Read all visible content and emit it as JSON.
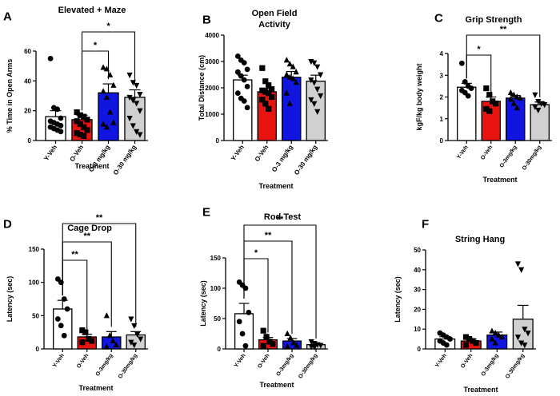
{
  "chart_data": [
    {
      "panel": "A",
      "type": "bar",
      "title": "Elevated + Maze",
      "xlabel": "Treatment",
      "ylabel": "% Time in Open Arms",
      "ylim": [
        0,
        60
      ],
      "yticks": [
        "0",
        "20",
        "40",
        "60"
      ],
      "categories": [
        "Y-Veh",
        "O-Veh",
        "O-3 mg/kg",
        "O-30 mg/kg"
      ],
      "values": [
        16,
        14,
        32,
        29
      ],
      "sem": [
        4,
        3,
        6,
        5
      ],
      "colors": [
        "#ffffff",
        "#e8140f",
        "#1016e0",
        "#d0d0d0"
      ],
      "markers": [
        "circle",
        "square",
        "triangle",
        "triangle-down"
      ],
      "points": [
        [
          55,
          22,
          21,
          15,
          13,
          12,
          11,
          10,
          9,
          8,
          7,
          6
        ],
        [
          19,
          17,
          16,
          14,
          13,
          11,
          9,
          7,
          5,
          4,
          3
        ],
        [
          49,
          48,
          44,
          37,
          33,
          29,
          19,
          12,
          11,
          9
        ],
        [
          44,
          39,
          37,
          31,
          29,
          27,
          25,
          20,
          15,
          10,
          6,
          4
        ]
      ],
      "brackets": [
        {
          "from": 1,
          "to": 2,
          "label": "*",
          "level": 0
        },
        {
          "from": 1,
          "to": 3,
          "label": "*",
          "level": 1
        }
      ]
    },
    {
      "panel": "B",
      "type": "bar",
      "title": [
        "Open  Field",
        "Activity"
      ],
      "xlabel": "Treatment",
      "ylabel": "Total Distance (cm)",
      "ylim": [
        0,
        4000
      ],
      "yticks": [
        "0",
        "1000",
        "2000",
        "3000",
        "4000"
      ],
      "categories": [
        "Y-Veh",
        "O-Veh",
        "O-3 mg/kg",
        "O-30 mg/kg"
      ],
      "values": [
        2300,
        1850,
        2400,
        2250
      ],
      "sem": [
        180,
        130,
        220,
        230
      ],
      "colors": [
        "#ffffff",
        "#e8140f",
        "#1016e0",
        "#d0d0d0"
      ],
      "markers": [
        "circle",
        "square",
        "triangle",
        "triangle-down"
      ],
      "points": [
        [
          3200,
          3050,
          2950,
          2700,
          2600,
          2450,
          2300,
          2050,
          1800,
          1600,
          1500,
          1250
        ],
        [
          2750,
          2250,
          2100,
          1950,
          1900,
          1850,
          1800,
          1650,
          1550,
          1400,
          1200
        ],
        [
          3050,
          2900,
          2800,
          2600,
          2500,
          2400,
          2350,
          2200,
          1800,
          1400
        ],
        [
          3000,
          2950,
          2800,
          2500,
          2300,
          2200,
          1950,
          1700,
          1550,
          1400,
          1100
        ]
      ],
      "brackets": []
    },
    {
      "panel": "C",
      "type": "bar",
      "title": "Grip Strength",
      "xlabel": "Treatment",
      "ylabel": "kgF/kg body weight",
      "ylim": [
        0,
        4
      ],
      "yticks": [
        "0",
        "1",
        "2",
        "3",
        "4"
      ],
      "categories": [
        "Y-Veh",
        "O-Veh",
        "O-3mg/kg",
        "O-30mg/kg"
      ],
      "values": [
        2.45,
        1.8,
        1.95,
        1.65
      ],
      "sem": [
        0.18,
        0.2,
        0.12,
        0.12
      ],
      "colors": [
        "#ffffff",
        "#e8140f",
        "#1016e0",
        "#d0d0d0"
      ],
      "markers": [
        "circle",
        "square",
        "triangle",
        "triangle-down"
      ],
      "points": [
        [
          3.55,
          2.7,
          2.5,
          2.4,
          2.3,
          2.2,
          2.05
        ],
        [
          2.4,
          2.1,
          1.8,
          1.7,
          1.45,
          1.35
        ],
        [
          2.2,
          2.1,
          2.0,
          1.95,
          1.9,
          1.7,
          1.5
        ],
        [
          2.1,
          1.8,
          1.7,
          1.65,
          1.55,
          1.4
        ]
      ],
      "brackets": [
        {
          "from": 0,
          "to": 1,
          "label": "*",
          "level": 0
        },
        {
          "from": 0,
          "to": 3,
          "label": "**",
          "level": 1
        }
      ]
    },
    {
      "panel": "D",
      "type": "bar",
      "title": "Cage Drop",
      "xlabel": "Treatment",
      "ylabel": "Latency (sec)",
      "ylim": [
        0,
        150
      ],
      "yticks": [
        "0",
        "50",
        "100",
        "150"
      ],
      "categories": [
        "Y-Veh",
        "O-Veh",
        "O-3mg/kg",
        "O-30mg/kg"
      ],
      "values": [
        60,
        18,
        18,
        21
      ],
      "sem": [
        13,
        4,
        8,
        5
      ],
      "colors": [
        "#ffffff",
        "#e8140f",
        "#1016e0",
        "#d0d0d0"
      ],
      "markers": [
        "circle",
        "square",
        "triangle",
        "triangle-down"
      ],
      "points": [
        [
          105,
          100,
          75,
          60,
          45,
          35,
          20
        ],
        [
          28,
          25,
          15,
          12,
          10
        ],
        [
          50,
          20,
          12,
          6,
          3
        ],
        [
          45,
          35,
          22,
          15,
          10,
          6
        ]
      ],
      "brackets": [
        {
          "from": 0,
          "to": 1,
          "label": "**",
          "level": 0
        },
        {
          "from": 0,
          "to": 2,
          "label": "**",
          "level": 1
        },
        {
          "from": 0,
          "to": 3,
          "label": "**",
          "level": 2
        }
      ]
    },
    {
      "panel": "E",
      "type": "bar",
      "title": "Rod Test",
      "xlabel": "Treatment",
      "ylabel": "Latency (sec)",
      "ylim": [
        0,
        150
      ],
      "yticks": [
        "0",
        "50",
        "100",
        "150"
      ],
      "categories": [
        "Y-Veh",
        "O-Veh",
        "O-3mg/kg",
        "O-30mg/kg"
      ],
      "values": [
        58,
        15,
        13,
        7
      ],
      "sem": [
        17,
        4,
        4,
        2
      ],
      "colors": [
        "#ffffff",
        "#e8140f",
        "#1016e0",
        "#d0d0d0"
      ],
      "markers": [
        "circle",
        "square",
        "triangle",
        "triangle-down"
      ],
      "points": [
        [
          110,
          105,
          100,
          60,
          45,
          25,
          5
        ],
        [
          30,
          20,
          12,
          8,
          5
        ],
        [
          25,
          18,
          10,
          6,
          4
        ],
        [
          12,
          9,
          7,
          6,
          4,
          3
        ]
      ],
      "brackets": [
        {
          "from": 0,
          "to": 1,
          "label": "*",
          "level": 0
        },
        {
          "from": 0,
          "to": 2,
          "label": "**",
          "level": 1
        },
        {
          "from": 0,
          "to": 3,
          "label": "**",
          "level": 2
        }
      ]
    },
    {
      "panel": "F",
      "type": "bar",
      "title": "String Hang",
      "xlabel": "Treatment",
      "ylabel": "Latency (sec)",
      "ylim": [
        0,
        50
      ],
      "yticks": [
        "0",
        "10",
        "20",
        "30",
        "40",
        "50"
      ],
      "categories": [
        "Y-Veh",
        "O-Veh",
        "O-3mg/kg",
        "O-30mg/kg"
      ],
      "values": [
        5,
        4,
        7,
        15
      ],
      "sem": [
        1.2,
        1,
        1.5,
        7
      ],
      "colors": [
        "#ffffff",
        "#e8140f",
        "#1016e0",
        "#d0d0d0"
      ],
      "markers": [
        "circle",
        "square",
        "triangle",
        "triangle-down"
      ],
      "points": [
        [
          8,
          7,
          6,
          5,
          4,
          3,
          2
        ],
        [
          6,
          5,
          4,
          3,
          2
        ],
        [
          9,
          8,
          7,
          6,
          5,
          3
        ],
        [
          43,
          40,
          10,
          8,
          6,
          3,
          2
        ]
      ],
      "brackets": []
    }
  ]
}
